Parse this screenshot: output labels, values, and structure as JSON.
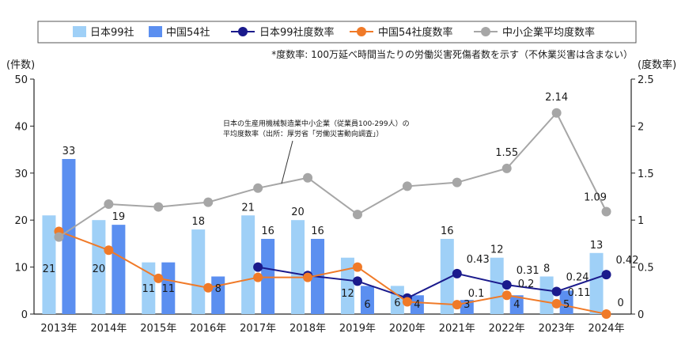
{
  "chart_data": {
    "type": "bar",
    "categories": [
      "2013年",
      "2014年",
      "2015年",
      "2016年",
      "2017年",
      "2018年",
      "2019年",
      "2020年",
      "2021年",
      "2022年",
      "2023年",
      "2024年"
    ],
    "left_axis": {
      "label": "(件数)",
      "range": [
        0,
        50
      ],
      "ticks": [
        "0",
        "10",
        "20",
        "30",
        "40",
        "50"
      ]
    },
    "right_axis": {
      "label": "(度数率)",
      "range": [
        0,
        2.5
      ],
      "ticks": [
        "0",
        "0.5",
        "1",
        "1.5",
        "2",
        "2.5"
      ]
    },
    "note": "*度数率: 100万延べ時間当たりの労働災害死傷者数を示す（不休業災害は含まない）",
    "annotation": "日本の生産用機械製造業中小企業（従業員100-299人）の\n平均度数率（出所：厚労省「労働災害動向調査」）",
    "legend_position": "top",
    "series": [
      {
        "name": "日本99社",
        "kind": "bar",
        "axis": "left",
        "color": "#9fd0f7",
        "values": [
          21,
          20,
          11,
          18,
          21,
          20,
          12,
          6,
          16,
          12,
          8,
          13
        ],
        "labels": [
          "21",
          "20",
          "11",
          "18",
          "21",
          "20",
          "12",
          "6",
          "16",
          "12",
          "8",
          "13"
        ]
      },
      {
        "name": "中国54社",
        "kind": "bar",
        "axis": "left",
        "color": "#5b8ff0",
        "values": [
          33,
          19,
          11,
          8,
          16,
          16,
          6,
          4,
          3,
          4,
          5,
          null
        ],
        "labels": [
          "33",
          "19",
          "11",
          "8",
          "16",
          "16",
          "6",
          "4",
          "3",
          "4",
          "5",
          ""
        ]
      },
      {
        "name": "日本99社度数率",
        "kind": "line",
        "axis": "right",
        "color": "#1a1a8c",
        "values": [
          null,
          null,
          null,
          null,
          0.5,
          0.41,
          0.35,
          0.17,
          0.43,
          0.31,
          0.24,
          0.42
        ],
        "labels": [
          "",
          "",
          "",
          "",
          "",
          "",
          "",
          "",
          "0.43",
          "0.31",
          "0.24",
          "0.42"
        ]
      },
      {
        "name": "中国54社度数率",
        "kind": "line",
        "axis": "right",
        "color": "#f07a28",
        "values": [
          0.88,
          0.68,
          0.38,
          0.28,
          0.39,
          0.39,
          0.5,
          0.13,
          0.1,
          0.2,
          0.11,
          0
        ],
        "labels": [
          "",
          "",
          "",
          "",
          "",
          "",
          "",
          "",
          "0.1",
          "0.2",
          "0.11",
          "0"
        ]
      },
      {
        "name": "中小企業平均度数率",
        "kind": "line",
        "axis": "right",
        "color": "#a6a6a6",
        "values": [
          0.82,
          1.17,
          1.14,
          1.19,
          1.34,
          1.45,
          1.06,
          1.36,
          1.4,
          1.55,
          2.14,
          1.09
        ],
        "labels": [
          "",
          "",
          "",
          "",
          "",
          "",
          "",
          "",
          "",
          "1.55",
          "2.14",
          "1.09"
        ]
      }
    ]
  }
}
